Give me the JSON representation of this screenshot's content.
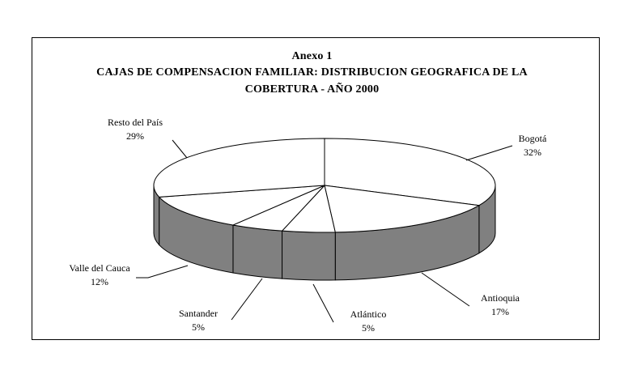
{
  "chart_data": {
    "type": "pie",
    "title": "Anexo 1",
    "subtitle": [
      "CAJAS DE COMPENSACION FAMILIAR: DISTRIBUCION GEOGRAFICA DE LA",
      "COBERTURA - AÑO 2000"
    ],
    "slices": [
      {
        "label": "Bogotá",
        "value": 32,
        "value_label": "32%"
      },
      {
        "label": "Antioquia",
        "value": 17,
        "value_label": "17%"
      },
      {
        "label": "Atlántico",
        "value": 5,
        "value_label": "5%"
      },
      {
        "label": "Santander",
        "value": 5,
        "value_label": "5%"
      },
      {
        "label": "Valle del Cauca",
        "value": 12,
        "value_label": "12%"
      },
      {
        "label": "Resto del País",
        "value": 29,
        "value_label": "29%"
      }
    ],
    "style": "3d-exploded-none",
    "colors": {
      "top": "#ffffff",
      "side": "#808080",
      "line": "#000000"
    }
  }
}
